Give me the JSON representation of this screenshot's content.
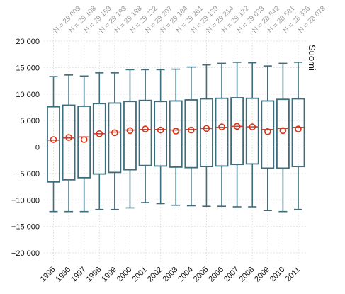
{
  "chart_data": {
    "type": "box",
    "panel_label": "Suomi",
    "ylim": [
      -22000,
      22000
    ],
    "y_ticks": [
      -20000,
      -15000,
      -10000,
      -5000,
      0,
      5000,
      10000,
      15000,
      20000
    ],
    "y_tick_labels": [
      "−20 000",
      "−15 000",
      "−10 000",
      "−5 000",
      "0",
      "5 000",
      "10 000",
      "15 000",
      "20 000"
    ],
    "grid": true,
    "zero_line": true,
    "colors": {
      "box": "#3c6e7d",
      "median": "#b0524b",
      "mean_marker": "#e03010",
      "grid": "#d9d9d9",
      "zero": "#9a9a9a"
    },
    "categories": [
      "1995",
      "1996",
      "1997",
      "1998",
      "1999",
      "2000",
      "2001",
      "2002",
      "2003",
      "2004",
      "2005",
      "2006",
      "2007",
      "2008",
      "2009",
      "2010",
      "2011"
    ],
    "n_labels": [
      "N = 29 003",
      "N = 29 108",
      "N = 29 159",
      "N = 29 193",
      "N = 29 198",
      "N = 29 222",
      "N = 29 207",
      "N = 29 184",
      "N = 29 261",
      "N = 29 139",
      "N = 29 214",
      "N = 29 172",
      "N = 29 038",
      "N = 28 842",
      "N = 28 581",
      "N = 28 336",
      "N = 28 078"
    ],
    "whisker_low": [
      -12200,
      -12200,
      -12200,
      -11800,
      -11800,
      -11500,
      -10500,
      -10700,
      -11000,
      -11100,
      -11200,
      -11200,
      -11300,
      -11300,
      -12000,
      -12200,
      -11800
    ],
    "q1": [
      -6600,
      -6200,
      -5800,
      -5100,
      -4800,
      -4300,
      -3500,
      -3600,
      -3800,
      -3900,
      -3700,
      -3600,
      -3300,
      -3200,
      -4000,
      -4000,
      -3700
    ],
    "median": [
      1300,
      1700,
      1900,
      2500,
      2800,
      3200,
      3300,
      3300,
      3200,
      3300,
      3500,
      3700,
      3900,
      3800,
      3300,
      3500,
      3700
    ],
    "q3": [
      7600,
      7900,
      7700,
      8200,
      8300,
      8600,
      8800,
      8600,
      8700,
      8900,
      9100,
      9200,
      9300,
      9200,
      8700,
      9000,
      9100
    ],
    "whisker_high": [
      13300,
      13600,
      13400,
      14000,
      14000,
      14600,
      14600,
      14600,
      14700,
      15100,
      15500,
      15800,
      16000,
      15900,
      15300,
      15800,
      16000
    ],
    "mean": [
      1400,
      1800,
      1400,
      2500,
      2700,
      3100,
      3400,
      3200,
      3000,
      3200,
      3500,
      3800,
      3900,
      3800,
      2900,
      3100,
      3400
    ]
  }
}
